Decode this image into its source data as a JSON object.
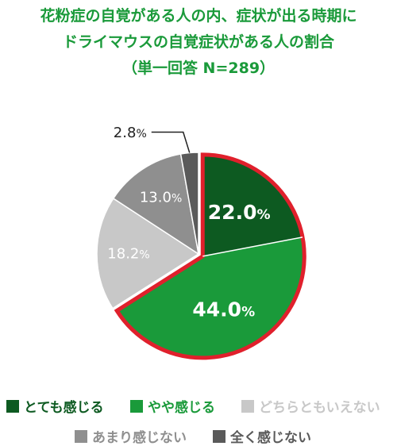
{
  "chart_data": {
    "type": "pie",
    "title_lines": [
      "花粉症の自覚がある人の内、症状が出る時期に",
      "ドライマウスの自覚症状がある人の割合"
    ],
    "subtitle": "（単一回答 N=289）",
    "unit": "%",
    "highlight": "とても感じる + やや感じる",
    "slices": [
      {
        "label": "とても感じる",
        "value": 22.0,
        "value_text": "22.0",
        "color": "#0d5a21",
        "text_color": "#ffffff"
      },
      {
        "label": "やや感じる",
        "value": 44.0,
        "value_text": "44.0",
        "color": "#1a9a3a",
        "text_color": "#ffffff"
      },
      {
        "label": "どちらともいえない",
        "value": 18.2,
        "value_text": "18.2",
        "color": "#c8c8c8",
        "text_color": "#ffffff"
      },
      {
        "label": "あまり感じない",
        "value": 13.0,
        "value_text": "13.0",
        "color": "#8f8f8f",
        "text_color": "#ffffff"
      },
      {
        "label": "全く感じない",
        "value": 2.8,
        "value_text": "2.8",
        "color": "#5a5a5a",
        "text_color": "#222222"
      }
    ],
    "highlight_color": "#e0202c"
  }
}
